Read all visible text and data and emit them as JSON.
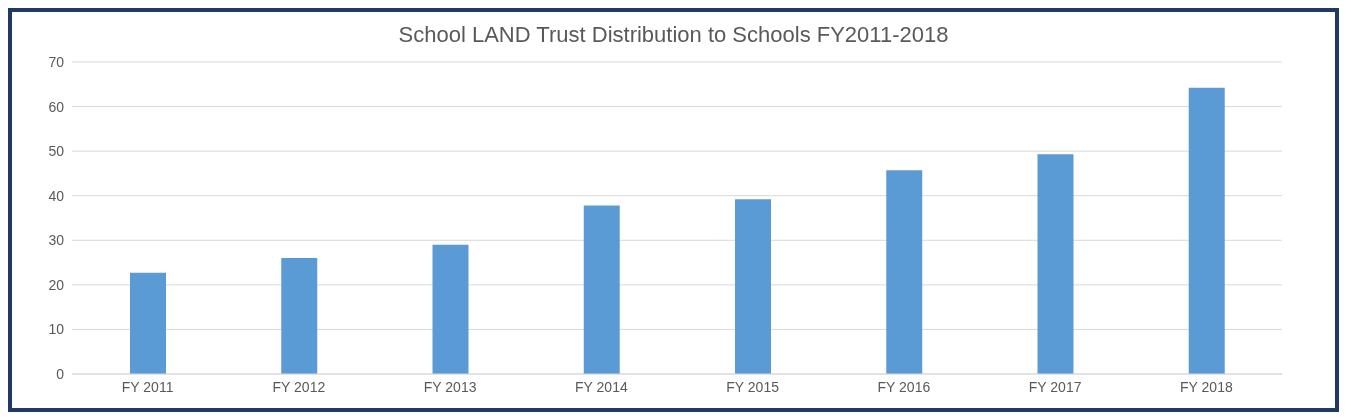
{
  "chart_data": {
    "type": "bar",
    "title": "School LAND Trust Distribution to Schools FY2011-2018",
    "categories": [
      "FY 2011",
      "FY 2012",
      "FY 2013",
      "FY 2014",
      "FY 2015",
      "FY 2016",
      "FY 2017",
      "FY 2018"
    ],
    "values": [
      22.7,
      26,
      29,
      37.8,
      39.2,
      45.7,
      49.3,
      64.2
    ],
    "color": "#5b9bd5",
    "ylim": [
      0,
      70
    ],
    "yticks": [
      0,
      10,
      20,
      30,
      40,
      50,
      60,
      70
    ],
    "grid": "y",
    "legend": false
  }
}
